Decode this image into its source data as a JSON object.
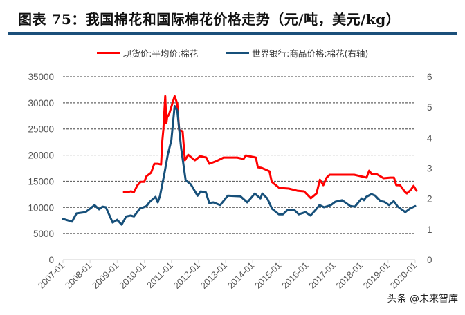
{
  "title": "图表  75：我国棉花和国际棉花价格走势（元/吨，美元/kg）",
  "watermark": "头条 @未来智库",
  "chart_data": {
    "type": "line",
    "title": "图表  75：我国棉花和国际棉花价格走势（元/吨，美元/kg）",
    "legend_position": "top",
    "grid": "horizontal dashed",
    "x_ticks": [
      "2007-01",
      "2008-01",
      "2009-01",
      "2010-01",
      "2011-01",
      "2012-01",
      "2013-01",
      "2014-01",
      "2015-01",
      "2016-01",
      "2017-01",
      "2018-01",
      "2019-01",
      "2020-01"
    ],
    "xlim": [
      "2007-01",
      "2020-01"
    ],
    "y_left": {
      "ylim": [
        0,
        35000
      ],
      "ticks": [
        "0",
        "5000",
        "10000",
        "15000",
        "20000",
        "25000",
        "30000",
        "35000"
      ]
    },
    "y_right": {
      "ylim": [
        0,
        6
      ],
      "ticks": [
        "0",
        "1",
        "2",
        "3",
        "4",
        "5",
        "6"
      ]
    },
    "series": [
      {
        "name": "现货价:平均价:棉花",
        "axis": "left",
        "color": "#ff0000",
        "points": [
          [
            "2009-04-01",
            12940
          ],
          [
            "2009-06-01",
            12940
          ],
          [
            "2009-07-01",
            13070
          ],
          [
            "2009-08-15",
            12940
          ],
          [
            "2009-10-01",
            14250
          ],
          [
            "2009-11-15",
            14900
          ],
          [
            "2010-01-01",
            14900
          ],
          [
            "2010-02-01",
            15970
          ],
          [
            "2010-04-01",
            16630
          ],
          [
            "2010-05-15",
            18350
          ],
          [
            "2010-07-01",
            18350
          ],
          [
            "2010-08-15",
            18200
          ],
          [
            "2010-09-01",
            22800
          ],
          [
            "2010-09-15",
            24950
          ],
          [
            "2010-10-10",
            31280
          ],
          [
            "2010-10-25",
            26100
          ],
          [
            "2010-11-05",
            27200
          ],
          [
            "2010-12-01",
            27850
          ],
          [
            "2011-02-15",
            31280
          ],
          [
            "2011-03-20",
            29830
          ],
          [
            "2011-04-15",
            24800
          ],
          [
            "2011-06-01",
            24550
          ],
          [
            "2011-07-01",
            19000
          ],
          [
            "2011-08-15",
            20060
          ],
          [
            "2011-11-15",
            19000
          ],
          [
            "2012-01-25",
            19800
          ],
          [
            "2012-04-15",
            19540
          ],
          [
            "2012-05-25",
            18350
          ],
          [
            "2012-09-01",
            18880
          ],
          [
            "2012-12-05",
            19540
          ],
          [
            "2013-06-05",
            19540
          ],
          [
            "2013-09-01",
            19270
          ],
          [
            "2013-10-01",
            19930
          ],
          [
            "2014-02-15",
            19540
          ],
          [
            "2014-03-10",
            17690
          ],
          [
            "2014-05-01",
            17560
          ],
          [
            "2014-08-15",
            16900
          ],
          [
            "2014-09-15",
            14900
          ],
          [
            "2014-12-25",
            13730
          ],
          [
            "2015-05-01",
            13600
          ],
          [
            "2015-08-25",
            13200
          ],
          [
            "2015-11-25",
            13070
          ],
          [
            "2016-02-25",
            11750
          ],
          [
            "2016-05-10",
            12670
          ],
          [
            "2016-06-25",
            15300
          ],
          [
            "2016-08-10",
            14250
          ],
          [
            "2016-09-25",
            15710
          ],
          [
            "2016-11-05",
            16240
          ],
          [
            "2017-05-10",
            16240
          ],
          [
            "2017-10-01",
            16240
          ],
          [
            "2018-03-15",
            15710
          ],
          [
            "2018-04-20",
            17030
          ],
          [
            "2018-05-25",
            16370
          ],
          [
            "2018-08-01",
            16370
          ],
          [
            "2018-11-01",
            15580
          ],
          [
            "2019-02-01",
            15710
          ],
          [
            "2019-03-20",
            15710
          ],
          [
            "2019-04-20",
            14250
          ],
          [
            "2019-06-10",
            14250
          ],
          [
            "2019-08-10",
            13070
          ],
          [
            "2019-09-10",
            12670
          ],
          [
            "2019-11-01",
            13330
          ],
          [
            "2019-12-10",
            14120
          ],
          [
            "2020-01-20",
            13200
          ]
        ]
      },
      {
        "name": "世界银行:商品价格:棉花(右轴)",
        "axis": "right",
        "color": "#17507a",
        "points": [
          [
            "2007-01-01",
            1.34
          ],
          [
            "2007-05-01",
            1.25
          ],
          [
            "2007-07-01",
            1.52
          ],
          [
            "2007-11-01",
            1.56
          ],
          [
            "2008-03-01",
            1.79
          ],
          [
            "2008-05-01",
            1.65
          ],
          [
            "2008-06-15",
            1.74
          ],
          [
            "2008-08-01",
            1.72
          ],
          [
            "2008-11-01",
            1.22
          ],
          [
            "2009-01-01",
            1.31
          ],
          [
            "2009-03-01",
            1.15
          ],
          [
            "2009-05-01",
            1.42
          ],
          [
            "2009-07-01",
            1.45
          ],
          [
            "2009-08-15",
            1.42
          ],
          [
            "2009-11-01",
            1.67
          ],
          [
            "2010-02-01",
            1.76
          ],
          [
            "2010-03-15",
            1.9
          ],
          [
            "2010-06-01",
            2.06
          ],
          [
            "2010-07-01",
            1.88
          ],
          [
            "2010-08-01",
            2.1
          ],
          [
            "2010-10-01",
            2.85
          ],
          [
            "2010-11-15",
            3.46
          ],
          [
            "2011-01-01",
            3.91
          ],
          [
            "2011-02-15",
            5.04
          ],
          [
            "2011-03-20",
            4.89
          ],
          [
            "2011-05-10",
            3.69
          ],
          [
            "2011-07-10",
            2.62
          ],
          [
            "2011-08-10",
            2.55
          ],
          [
            "2011-09-20",
            2.47
          ],
          [
            "2011-12-20",
            2.1
          ],
          [
            "2012-02-01",
            2.24
          ],
          [
            "2012-04-10",
            2.21
          ],
          [
            "2012-05-25",
            1.86
          ],
          [
            "2012-07-20",
            1.88
          ],
          [
            "2012-10-20",
            1.79
          ],
          [
            "2013-02-01",
            2.1
          ],
          [
            "2013-07-20",
            2.08
          ],
          [
            "2013-10-20",
            1.88
          ],
          [
            "2014-02-01",
            2.17
          ],
          [
            "2014-04-15",
            2.01
          ],
          [
            "2014-05-10",
            2.17
          ],
          [
            "2014-07-15",
            2.01
          ],
          [
            "2014-09-20",
            1.67
          ],
          [
            "2014-12-20",
            1.49
          ],
          [
            "2015-02-15",
            1.49
          ],
          [
            "2015-04-15",
            1.63
          ],
          [
            "2015-07-15",
            1.63
          ],
          [
            "2015-09-15",
            1.49
          ],
          [
            "2015-12-15",
            1.56
          ],
          [
            "2016-02-20",
            1.45
          ],
          [
            "2016-04-20",
            1.61
          ],
          [
            "2016-06-20",
            1.79
          ],
          [
            "2016-08-20",
            1.72
          ],
          [
            "2016-11-20",
            1.79
          ],
          [
            "2017-01-20",
            1.9
          ],
          [
            "2017-04-20",
            1.95
          ],
          [
            "2017-08-10",
            1.76
          ],
          [
            "2017-10-10",
            1.74
          ],
          [
            "2018-01-10",
            2.01
          ],
          [
            "2018-02-10",
            1.95
          ],
          [
            "2018-03-10",
            2.06
          ],
          [
            "2018-05-20",
            2.15
          ],
          [
            "2018-07-10",
            2.1
          ],
          [
            "2018-09-20",
            1.92
          ],
          [
            "2018-11-10",
            1.9
          ],
          [
            "2019-01-15",
            1.79
          ],
          [
            "2019-03-15",
            1.92
          ],
          [
            "2019-05-10",
            1.74
          ],
          [
            "2019-08-20",
            1.56
          ],
          [
            "2019-10-20",
            1.67
          ],
          [
            "2020-01-01",
            1.76
          ]
        ]
      }
    ]
  }
}
